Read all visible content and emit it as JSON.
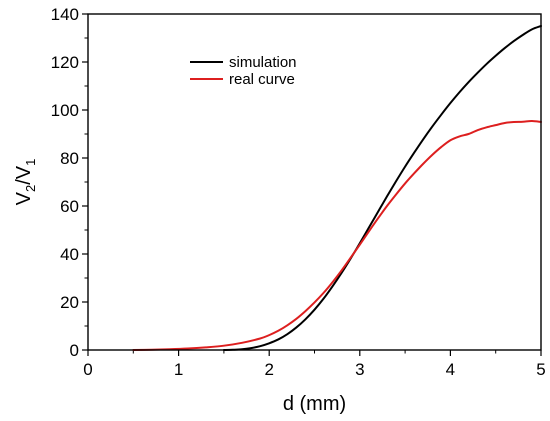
{
  "chart_data": {
    "type": "line",
    "xlabel": "d (mm)",
    "ylabel": {
      "main": "V",
      "sub1": "2",
      "sep": "/V",
      "sub2": "1"
    },
    "xlim": [
      0,
      5
    ],
    "ylim": [
      0,
      140
    ],
    "x_ticks": [
      "0",
      "1",
      "2",
      "3",
      "4",
      "5"
    ],
    "y_ticks": [
      "0",
      "20",
      "40",
      "60",
      "80",
      "100",
      "120",
      "140"
    ],
    "grid": false,
    "legend_position": "top-left-inside",
    "series": [
      {
        "name": "simulation",
        "color": "#000000",
        "x": [
          1.5,
          1.6,
          1.7,
          1.8,
          1.9,
          2.0,
          2.1,
          2.2,
          2.3,
          2.4,
          2.5,
          2.6,
          2.7,
          2.8,
          2.9,
          3.0,
          3.1,
          3.2,
          3.3,
          3.4,
          3.5,
          3.6,
          3.7,
          3.8,
          3.9,
          4.0,
          4.1,
          4.2,
          4.3,
          4.4,
          4.5,
          4.6,
          4.7,
          4.8,
          4.9,
          5.0
        ],
        "y": [
          0.0,
          0.1,
          0.3,
          0.8,
          1.6,
          2.8,
          4.4,
          6.6,
          9.4,
          12.8,
          16.8,
          21.4,
          26.6,
          32.2,
          38.2,
          44.5,
          51.0,
          57.5,
          64.0,
          70.3,
          76.4,
          82.2,
          87.8,
          93.1,
          98.1,
          102.9,
          107.4,
          111.6,
          115.5,
          119.2,
          122.6,
          125.8,
          128.7,
          131.3,
          133.6,
          135.0
        ]
      },
      {
        "name": "real curve",
        "color": "#dd1f1f",
        "x": [
          0.5,
          0.7,
          0.9,
          1.1,
          1.3,
          1.5,
          1.7,
          1.9,
          2.0,
          2.1,
          2.2,
          2.3,
          2.4,
          2.5,
          2.6,
          2.7,
          2.8,
          2.9,
          3.0,
          3.1,
          3.2,
          3.3,
          3.4,
          3.5,
          3.6,
          3.7,
          3.8,
          3.9,
          4.0,
          4.1,
          4.2,
          4.3,
          4.4,
          4.5,
          4.6,
          4.7,
          4.8,
          4.9,
          5.0
        ],
        "y": [
          0.0,
          0.1,
          0.3,
          0.6,
          1.1,
          1.8,
          3.0,
          4.8,
          6.2,
          8.0,
          10.3,
          13.0,
          16.2,
          19.8,
          23.8,
          28.3,
          33.2,
          38.5,
          43.9,
          49.4,
          54.8,
          60.0,
          64.8,
          69.4,
          73.6,
          77.6,
          81.3,
          84.6,
          87.4,
          89.0,
          90.0,
          91.6,
          92.8,
          93.7,
          94.6,
          95.0,
          95.1,
          95.4,
          95.0
        ]
      }
    ]
  }
}
